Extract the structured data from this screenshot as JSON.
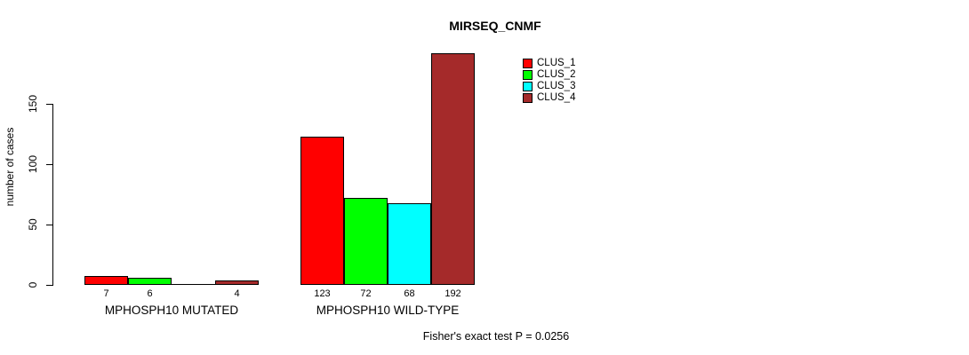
{
  "chart_data": {
    "type": "bar",
    "title": "MIRSEQ_CNMF",
    "xlabel": "",
    "ylabel": "number of cases",
    "categories": [
      "MPHOSPH10 MUTATED",
      "MPHOSPH10 WILD-TYPE"
    ],
    "series": [
      {
        "name": "CLUS_1",
        "color": "#FF0000",
        "values": [
          7,
          123
        ]
      },
      {
        "name": "CLUS_2",
        "color": "#00FF00",
        "values": [
          6,
          72
        ]
      },
      {
        "name": "CLUS_3",
        "color": "#00FFFF",
        "values": [
          0,
          68
        ]
      },
      {
        "name": "CLUS_4",
        "color": "#A52A2A",
        "values": [
          4,
          192
        ]
      }
    ],
    "yticks": [
      0,
      50,
      100,
      150
    ],
    "ylim": [
      0,
      194
    ],
    "grid": false,
    "legend_position": "top-right",
    "bar_value_labels": true,
    "hide_zero_value_labels": true,
    "annotation": "Fisher's exact test P = 0.0256",
    "axis_color": "#000000",
    "background_color": "#FFFFFF"
  }
}
